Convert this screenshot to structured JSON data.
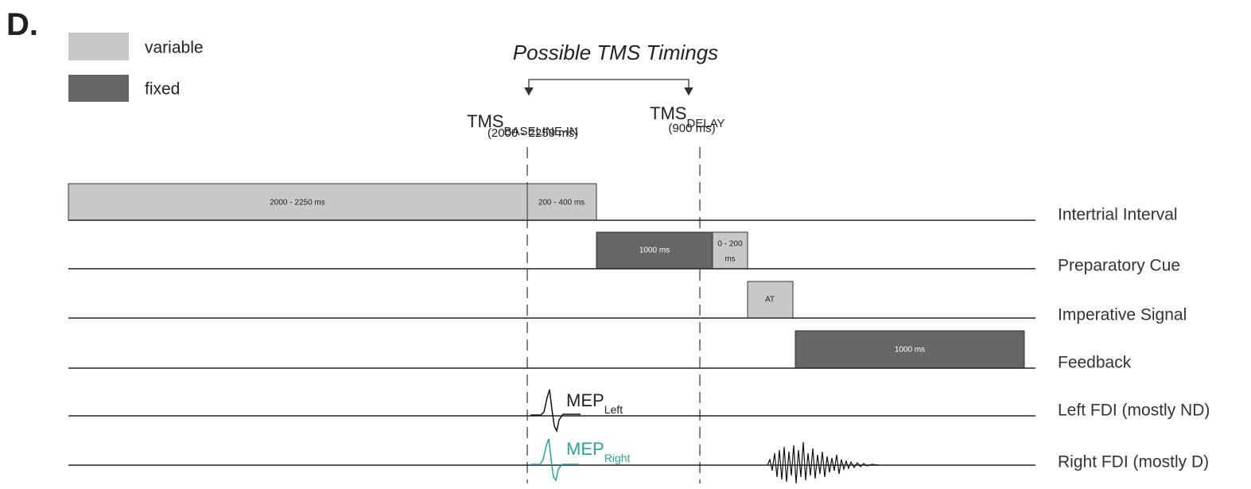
{
  "panel_label": "D.",
  "legend": [
    "variable",
    "fixed"
  ],
  "tms": {
    "title": "Possible TMS Timings",
    "markers": [
      {
        "label": "TMS",
        "subscript": "BASELINE-IN",
        "time": "(2000 - 2250 ms)"
      },
      {
        "label": "TMS",
        "subscript": "DELAY",
        "time": "(900 ms)"
      }
    ]
  },
  "rows": [
    {
      "label": "Intertrial Interval",
      "segments": [
        "2000 - 2250 ms",
        "200 - 400 ms"
      ]
    },
    {
      "label": "Preparatory Cue",
      "segments": [
        "1000 ms",
        [
          "0 - 200",
          "ms"
        ]
      ]
    },
    {
      "label": "Imperative Signal",
      "segments": [
        "AT"
      ]
    },
    {
      "label": "Feedback",
      "segments": [
        "1000 ms"
      ]
    },
    {
      "label": "Left FDI (mostly ND)"
    },
    {
      "label": "Right FDI (mostly D)"
    }
  ],
  "emg": [
    {
      "label": "MEP",
      "subscript": "Left"
    },
    {
      "label": "MEP",
      "subscript": "Right"
    }
  ]
}
